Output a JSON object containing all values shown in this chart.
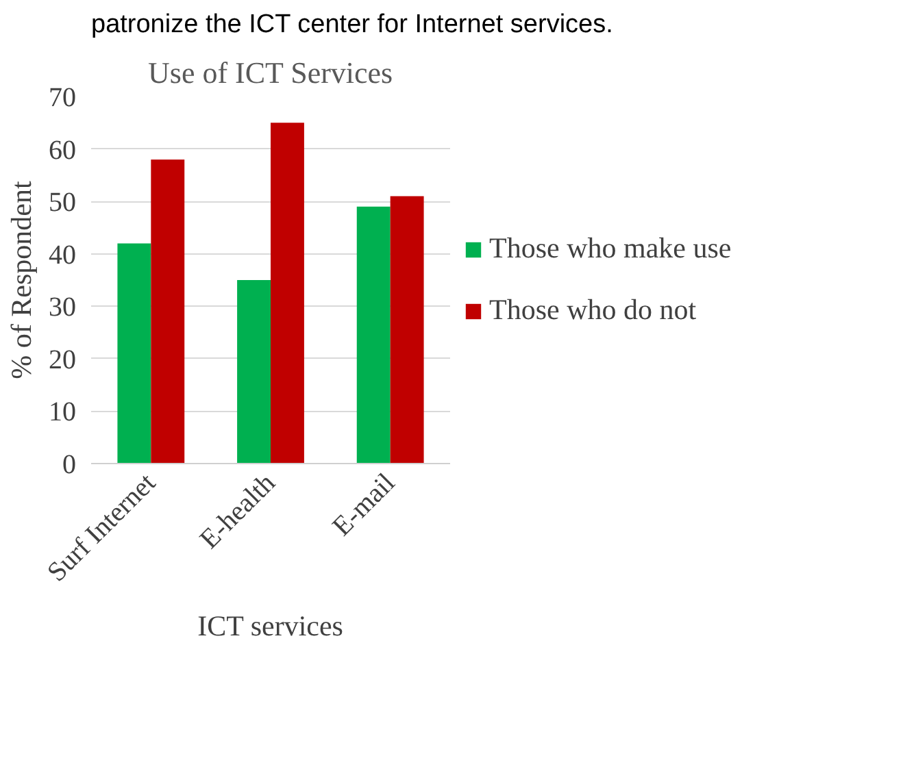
{
  "chart_data": {
    "type": "bar",
    "title": "Use of ICT Services",
    "xlabel": "ICT services",
    "ylabel": "% of Respondent",
    "annotations": [
      "patronize the ICT center for Internet services."
    ],
    "categories": [
      "Surf Internet",
      "E-health",
      "E-mail"
    ],
    "series": [
      {
        "name": "Those who make use",
        "color": "#00b050",
        "values": [
          42,
          35,
          49
        ]
      },
      {
        "name": "Those who do not",
        "color": "#c00000",
        "values": [
          58,
          65,
          51
        ]
      }
    ],
    "ylim": [
      0,
      70
    ],
    "yticks": [
      0,
      10,
      20,
      30,
      40,
      50,
      60,
      70
    ],
    "grid": "y",
    "legend": "right"
  }
}
